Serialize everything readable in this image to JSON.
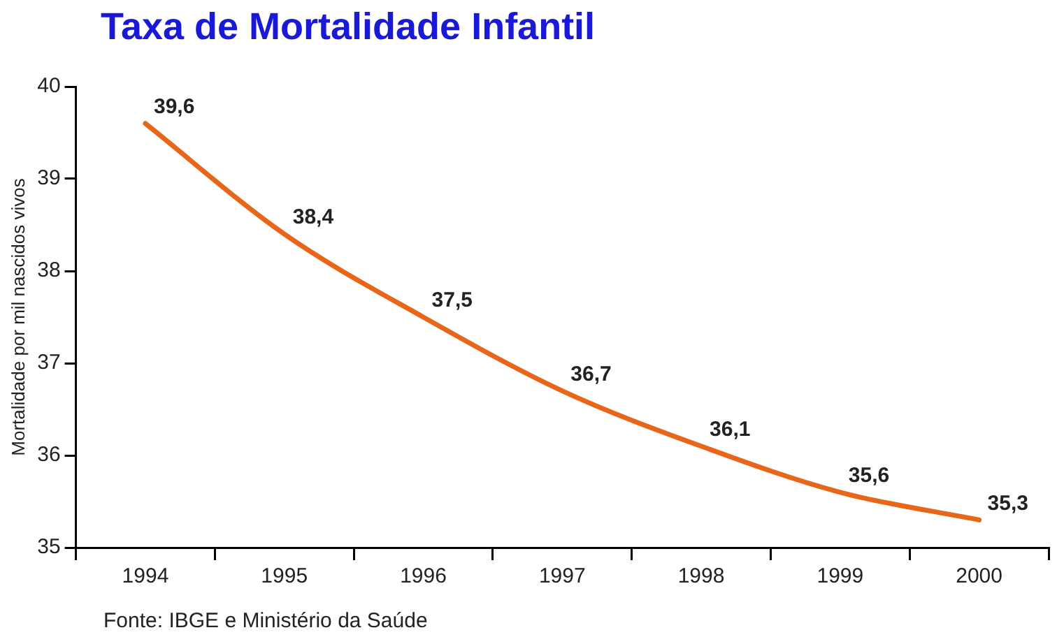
{
  "chart_data": {
    "type": "line",
    "title": "Taxa de Mortalidade Infantil",
    "ylabel": "Mortalidade por mil nascidos vivos",
    "categories": [
      "1994",
      "1995",
      "1996",
      "1997",
      "1998",
      "1999",
      "2000"
    ],
    "series": [
      {
        "color": "#e8661a",
        "values": [
          39.6,
          38.4,
          37.5,
          36.7,
          36.1,
          35.6,
          35.3
        ],
        "value_labels": [
          "39,6",
          "38,4",
          "37,5",
          "36,7",
          "36,1",
          "35,6",
          "35,3"
        ]
      }
    ],
    "ylim": [
      35,
      40
    ],
    "yticks": [
      35,
      36,
      37,
      38,
      39,
      40
    ],
    "grid": false,
    "legend": false,
    "marker": "none",
    "line_style": "solid",
    "annotations": [
      "Fonte: IBGE e Ministério da Saúde"
    ]
  }
}
